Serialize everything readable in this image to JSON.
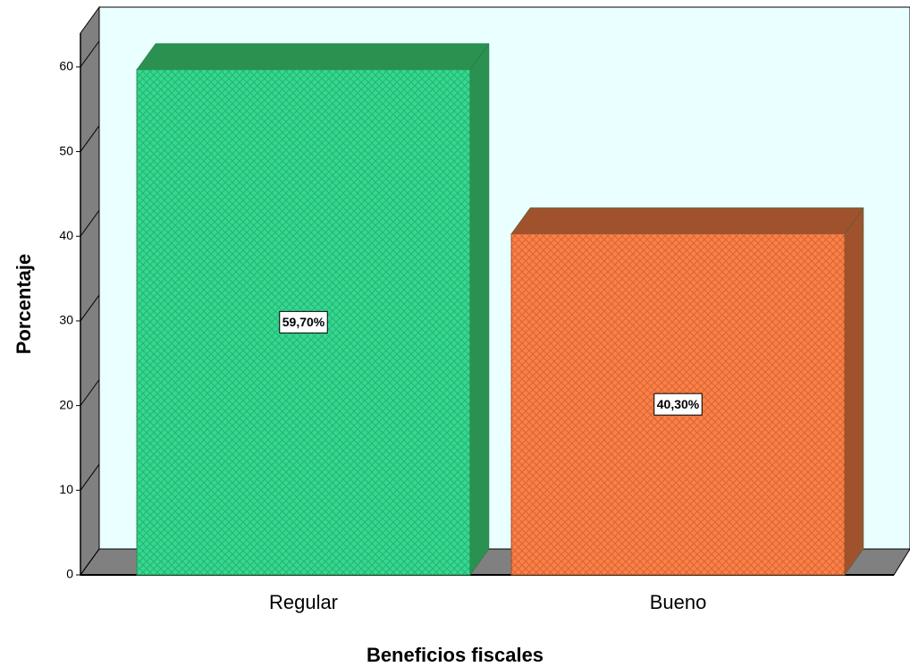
{
  "chart_data": {
    "type": "bar3d",
    "categories": [
      "Regular",
      "Bueno"
    ],
    "values": [
      59.7,
      40.3
    ],
    "value_labels": [
      "59,70%",
      "40,30%"
    ],
    "colors": [
      "#33d98f",
      "#ff7f45"
    ],
    "side_colors": [
      "#2b9150",
      "#a0522d"
    ],
    "xlabel": "Beneficios fiscales",
    "ylabel": "Porcentaje",
    "ylim": [
      0,
      64
    ],
    "yticks": [
      0,
      10,
      20,
      30,
      40,
      50,
      60
    ]
  }
}
